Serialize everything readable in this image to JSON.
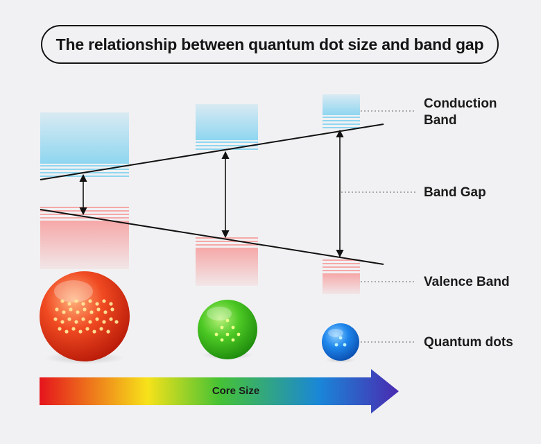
{
  "title": "The relationship between quantum dot size and band gap",
  "labels": {
    "conduction_band": "Conduction\nBand",
    "band_gap": "Band Gap",
    "valence_band": "Valence Band",
    "quantum_dots": "Quantum dots"
  },
  "core_size_label": "Core Size",
  "colors": {
    "background": "#f1f1f3",
    "conduction_band": "#8fd6f0",
    "valence_band": "#f6a8a8",
    "dot_large": "#e2321a",
    "dot_medium": "#3cc21e",
    "dot_small": "#1477e0",
    "arrow_gradient": [
      "#e5141c",
      "#f7e21a",
      "#46c234",
      "#1a86d8",
      "#4a2ab0"
    ]
  },
  "icons": [
    "double-arrow-icon",
    "gradient-arrow-icon"
  ]
}
